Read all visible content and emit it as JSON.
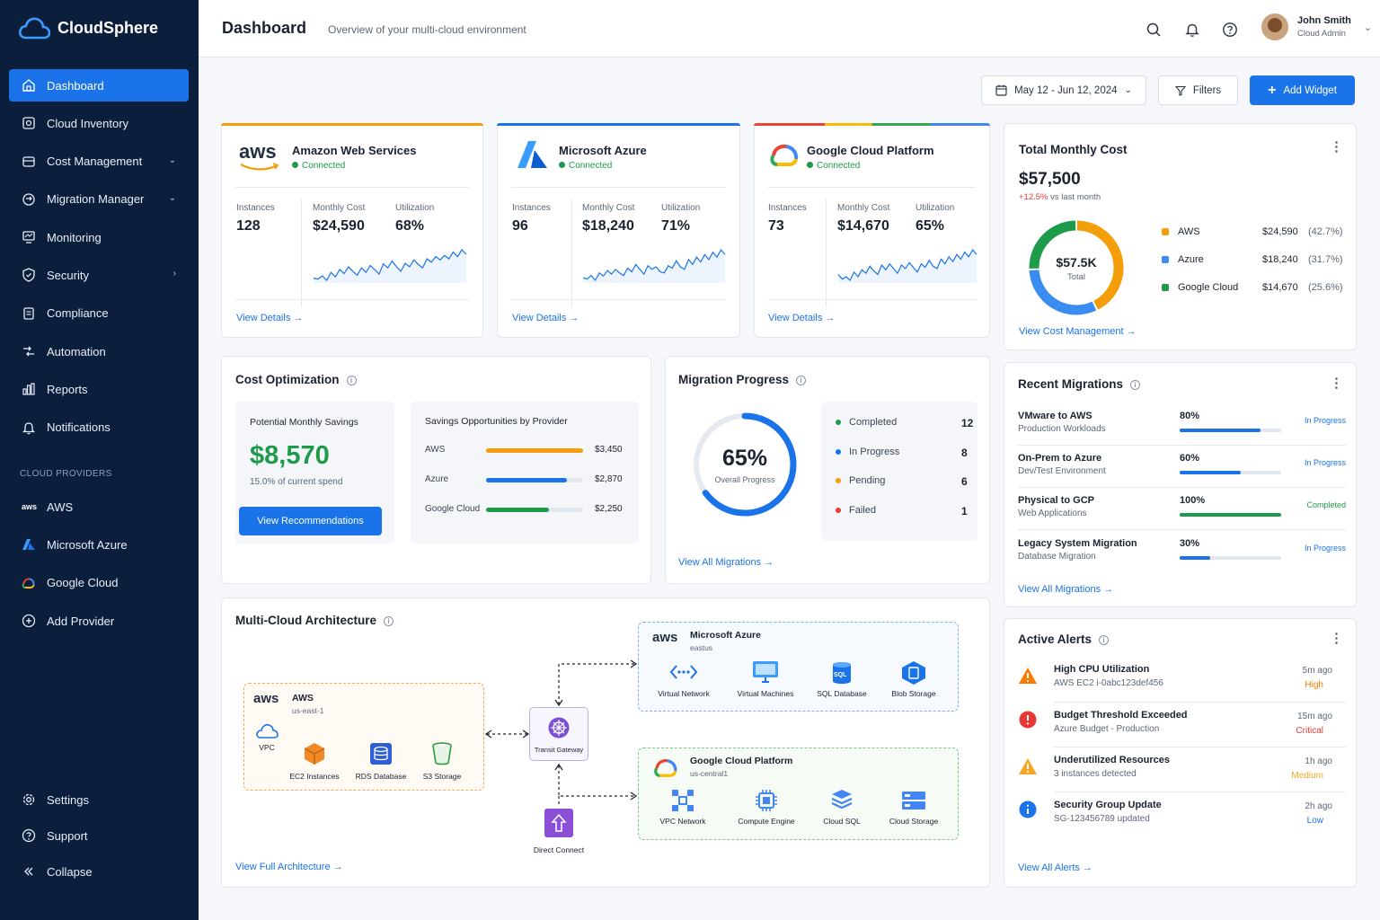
{
  "brand": {
    "name": "CloudSphere"
  },
  "sidebar": {
    "items": [
      {
        "label": "Dashboard"
      },
      {
        "label": "Cloud Inventory"
      },
      {
        "label": "Cost Management"
      },
      {
        "label": "Migration Manager"
      },
      {
        "label": "Monitoring"
      },
      {
        "label": "Security"
      },
      {
        "label": "Compliance"
      },
      {
        "label": "Automation"
      },
      {
        "label": "Reports"
      },
      {
        "label": "Notifications"
      }
    ],
    "providers_title": "CLOUD PROVIDERS",
    "providers": [
      {
        "label": "AWS"
      },
      {
        "label": "Microsoft Azure"
      },
      {
        "label": "Google Cloud"
      },
      {
        "label": "Add Provider"
      }
    ],
    "bottom": [
      {
        "label": "Settings"
      },
      {
        "label": "Support"
      },
      {
        "label": "Collapse"
      }
    ]
  },
  "header": {
    "title": "Dashboard",
    "subtitle": "Overview of your multi-cloud environment",
    "user_name": "John Smith",
    "user_role": "Cloud Admin"
  },
  "toolbar": {
    "date_range": "May 12 - Jun 12, 2024",
    "filters": "Filters",
    "add_widget": "Add Widget"
  },
  "providers": [
    {
      "name": "Amazon Web Services",
      "status": "Connected",
      "instances_label": "Instances",
      "instances": "128",
      "cost_label": "Monthly Cost",
      "cost": "$24,590",
      "util_label": "Utilization",
      "util": "68%",
      "link": "View Details",
      "color": "#f59e0b",
      "spark": [
        40,
        38,
        44,
        36,
        50,
        42,
        55,
        48,
        60,
        52,
        45,
        58,
        50,
        62,
        55,
        47,
        65,
        58,
        70,
        60,
        52,
        66,
        60,
        72,
        64,
        58,
        74,
        68,
        78,
        72,
        80,
        74,
        86,
        78,
        90,
        82
      ]
    },
    {
      "name": "Microsoft Azure",
      "status": "Connected",
      "instances_label": "Instances",
      "instances": "96",
      "cost_label": "Monthly Cost",
      "cost": "$18,240",
      "util_label": "Utilization",
      "util": "71%",
      "link": "View Details",
      "color": "#1a73e8",
      "spark": [
        42,
        40,
        46,
        38,
        50,
        45,
        54,
        48,
        56,
        50,
        46,
        58,
        52,
        64,
        56,
        48,
        62,
        56,
        60,
        52,
        50,
        62,
        58,
        70,
        60,
        56,
        72,
        64,
        76,
        68,
        80,
        72,
        84,
        76,
        88,
        80
      ]
    },
    {
      "name": "Google Cloud Platform",
      "status": "Connected",
      "instances_label": "Instances",
      "instances": "73",
      "cost_label": "Monthly Cost",
      "cost": "$14,670",
      "util_label": "Utilization",
      "util": "65%",
      "link": "View Details",
      "color": "#ea4335",
      "spark": [
        44,
        36,
        40,
        34,
        48,
        40,
        52,
        46,
        58,
        50,
        44,
        60,
        52,
        62,
        54,
        46,
        60,
        54,
        64,
        56,
        48,
        62,
        56,
        68,
        58,
        54,
        70,
        62,
        74,
        66,
        78,
        70,
        82,
        74,
        86,
        78
      ]
    }
  ],
  "total_cost": {
    "title": "Total Monthly Cost",
    "amount": "$57,500",
    "change": "+12.5%",
    "change_label": "vs last month",
    "center_value": "$57.5K",
    "center_label": "Total",
    "rows": [
      {
        "name": "AWS",
        "value": "$24,590",
        "pct": "(42.7%)",
        "color": "#f59e0b",
        "share": 42.7
      },
      {
        "name": "Azure",
        "value": "$18,240",
        "pct": "(31.7%)",
        "color": "#3b8cf0",
        "share": 31.7
      },
      {
        "name": "Google Cloud",
        "value": "$14,670",
        "pct": "(25.6%)",
        "color": "#1e9b4a",
        "share": 25.6
      }
    ],
    "link": "View Cost Management"
  },
  "cost_opt": {
    "title": "Cost Optimization",
    "savings_label": "Potential Monthly Savings",
    "savings": "$8,570",
    "savings_note": "15.0% of current spend",
    "button": "View Recommendations",
    "opp_title": "Savings Opportunities by Provider",
    "opps": [
      {
        "name": "AWS",
        "value": "$3,450",
        "fraction": 1.0,
        "color": "#f59e0b"
      },
      {
        "name": "Azure",
        "value": "$2,870",
        "fraction": 0.83,
        "color": "#1a73e8"
      },
      {
        "name": "Google Cloud",
        "value": "$2,250",
        "fraction": 0.65,
        "color": "#1e9b4a"
      }
    ]
  },
  "migration": {
    "title": "Migration Progress",
    "percent": "65%",
    "percent_value": 65,
    "label": "Overall Progress",
    "legend": [
      {
        "name": "Completed",
        "count": "12",
        "color": "#1e9b4a"
      },
      {
        "name": "In Progress",
        "count": "8",
        "color": "#1a73e8"
      },
      {
        "name": "Pending",
        "count": "6",
        "color": "#f59e0b"
      },
      {
        "name": "Failed",
        "count": "1",
        "color": "#e53935"
      }
    ],
    "link": "View All Migrations"
  },
  "recent": {
    "title": "Recent Migrations",
    "rows": [
      {
        "name": "VMware to AWS",
        "desc": "Production Workloads",
        "pct": "80%",
        "value": 80,
        "status": "In Progress",
        "color": "#1a73e8"
      },
      {
        "name": "On-Prem to Azure",
        "desc": "Dev/Test Environment",
        "pct": "60%",
        "value": 60,
        "status": "In Progress",
        "color": "#1a73e8"
      },
      {
        "name": "Physical to GCP",
        "desc": "Web Applications",
        "pct": "100%",
        "value": 100,
        "status": "Completed",
        "color": "#1e9b4a"
      },
      {
        "name": "Legacy System Migration",
        "desc": "Database Migration",
        "pct": "30%",
        "value": 30,
        "status": "In Progress",
        "color": "#1a73e8"
      }
    ],
    "link": "View All Migrations"
  },
  "architecture": {
    "title": "Multi-Cloud Architecture",
    "aws": {
      "name": "AWS",
      "region": "us-east-1",
      "vpc": "VPC",
      "services": [
        "EC2 Instances",
        "RDS Database",
        "S3 Storage"
      ]
    },
    "azure": {
      "name": "Microsoft Azure",
      "region": "eastus",
      "services": [
        "Virtual Network",
        "Virtual Machines",
        "SQL Database",
        "Blob Storage"
      ]
    },
    "gcp": {
      "name": "Google Cloud Platform",
      "region": "us-central1",
      "services": [
        "VPC Network",
        "Compute Engine",
        "Cloud SQL",
        "Cloud Storage"
      ]
    },
    "gateway": "Transit Gateway",
    "direct": "Direct Connect",
    "link": "View Full Architecture",
    "aws_logo": "aws",
    "sql_badge": "SQL"
  },
  "alerts": {
    "title": "Active Alerts",
    "rows": [
      {
        "name": "High CPU Utilization",
        "desc": "AWS EC2 i-0abc123def456",
        "time": "5m ago",
        "severity": "High",
        "color": "#f57c00",
        "icon": "warning-icon"
      },
      {
        "name": "Budget Threshold Exceeded",
        "desc": "Azure Budget - Production",
        "time": "15m ago",
        "severity": "Critical",
        "color": "#e53935",
        "icon": "error-icon"
      },
      {
        "name": "Underutilized Resources",
        "desc": "3 instances detected",
        "time": "1h ago",
        "severity": "Medium",
        "color": "#f5a623",
        "icon": "warning-icon"
      },
      {
        "name": "Security Group Update",
        "desc": "SG-123456789 updated",
        "time": "2h ago",
        "severity": "Low",
        "color": "#1a73e8",
        "icon": "info-icon"
      }
    ],
    "link": "View All Alerts"
  }
}
